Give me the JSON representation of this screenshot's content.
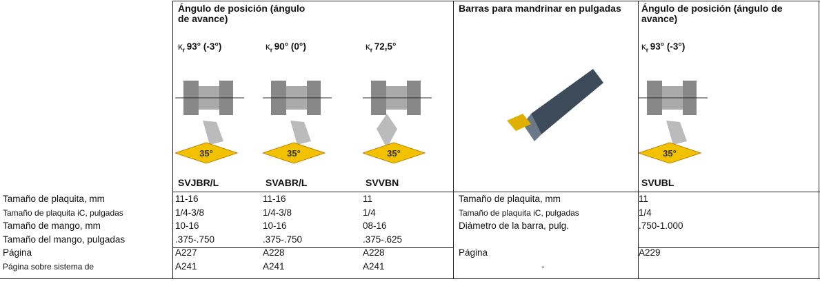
{
  "row_labels": [
    "Tamaño de plaquita, mm",
    "Tamaño de plaquita iC, pulgadas",
    "Tamaño de mango, mm",
    "Tamaño del mango, pulgadas",
    "Página",
    "Página sobre sistema de"
  ],
  "groups": [
    {
      "title": "Ángulo de posición (ángulo de avance)",
      "columns": [
        {
          "angle_symbol": "κ",
          "angle_sub": "r",
          "angle": "93° (-3°)",
          "insert_angle": "35°",
          "code": "SVJBR/L",
          "values": [
            "11-16",
            "1/4-3/8",
            "10-16",
            ".375-.750",
            "A227",
            "A241"
          ]
        },
        {
          "angle_symbol": "κ",
          "angle_sub": "r",
          "angle": "90° (0°)",
          "insert_angle": "35°",
          "code": "SVABR/L",
          "values": [
            "11-16",
            "1/4-3/8",
            "10-16",
            ".375-.750",
            "A228",
            "A241"
          ]
        },
        {
          "angle_symbol": "κ",
          "angle_sub": "r",
          "angle": "72,5°",
          "insert_angle": "35°",
          "code": "SVVBN",
          "values": [
            "11",
            "1/4",
            "08-16",
            ".375-.625",
            "A228",
            "A241"
          ]
        }
      ]
    },
    {
      "title": "Barras para mandrinar en pulgadas",
      "row_labels": [
        "Tamaño de plaquita, mm",
        "Tamaño de plaquita iC, pulgadas",
        "Diámetro de la barra, pulg.",
        "Página",
        "-"
      ]
    },
    {
      "title": "Ángulo de posición (ángulo de avance)",
      "columns": [
        {
          "angle_symbol": "κ",
          "angle_sub": "r",
          "angle": "93° (-3°)",
          "insert_angle": "35°",
          "code": "SVUBL",
          "values": [
            "11",
            "1/4",
            ".750-1.000",
            "A229"
          ]
        }
      ]
    }
  ]
}
